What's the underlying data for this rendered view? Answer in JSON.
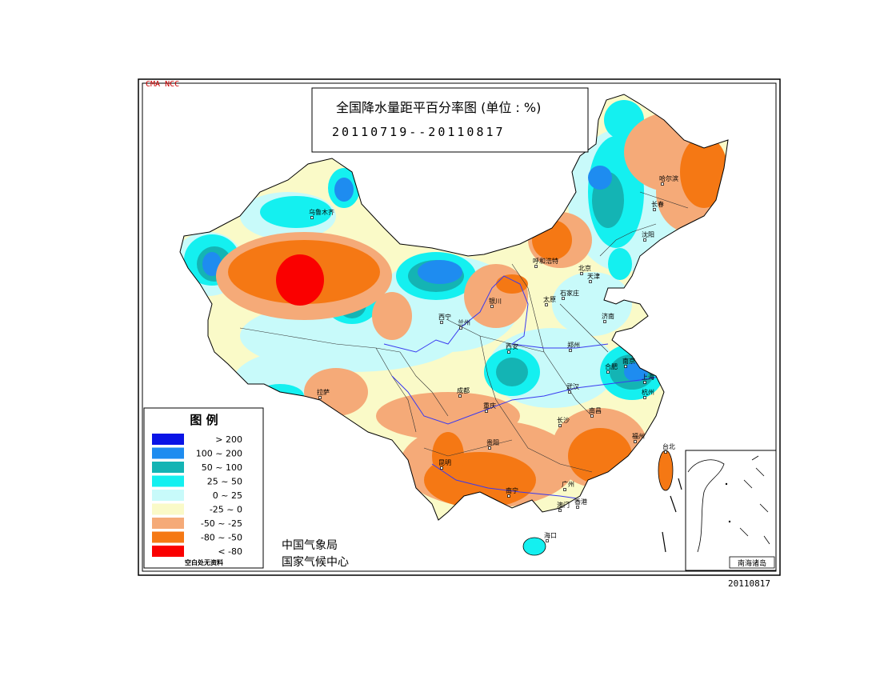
{
  "header": {
    "tag": "CMA NCC",
    "title": "全国降水量距平百分率图 (单位 : %)",
    "period": "20110719--20110817"
  },
  "legend": {
    "title": "图    例",
    "note": "空白处无资料",
    "items": [
      {
        "label": "> 200",
        "color": "#0a14e6"
      },
      {
        "label": "100 ~ 200",
        "color": "#1e8cf0"
      },
      {
        "label": "50 ~ 100",
        "color": "#14b4b4"
      },
      {
        "label": "25 ~ 50",
        "color": "#14f0f0"
      },
      {
        "label": "0 ~ 25",
        "color": "#c8fafa"
      },
      {
        "label": "-25 ~ 0",
        "color": "#fafac8"
      },
      {
        "label": "-50 ~ -25",
        "color": "#f5aa78"
      },
      {
        "label": "-80 ~ -50",
        "color": "#f57814"
      },
      {
        "label": "< -80",
        "color": "#fa0000"
      }
    ]
  },
  "credit": {
    "line1": "中国气象局",
    "line2": "国家气候中心"
  },
  "inset": {
    "label": "南海诸岛"
  },
  "footer": {
    "date": "20110817"
  },
  "cities": [
    {
      "name": "乌鲁木齐"
    },
    {
      "name": "拉萨"
    },
    {
      "name": "西宁"
    },
    {
      "name": "兰州"
    },
    {
      "name": "银川"
    },
    {
      "name": "呼和浩特"
    },
    {
      "name": "太原"
    },
    {
      "name": "石家庄"
    },
    {
      "name": "北京"
    },
    {
      "name": "天津"
    },
    {
      "name": "沈阳"
    },
    {
      "name": "长春"
    },
    {
      "name": "哈尔滨"
    },
    {
      "name": "济南"
    },
    {
      "name": "郑州"
    },
    {
      "name": "西安"
    },
    {
      "name": "成都"
    },
    {
      "name": "重庆"
    },
    {
      "name": "贵阳"
    },
    {
      "name": "昆明"
    },
    {
      "name": "南宁"
    },
    {
      "name": "广州"
    },
    {
      "name": "香港"
    },
    {
      "name": "澳门"
    },
    {
      "name": "海口"
    },
    {
      "name": "长沙"
    },
    {
      "name": "南昌"
    },
    {
      "name": "武汉"
    },
    {
      "name": "合肥"
    },
    {
      "name": "南京"
    },
    {
      "name": "上海"
    },
    {
      "name": "杭州"
    },
    {
      "name": "福州"
    },
    {
      "name": "台北"
    }
  ]
}
